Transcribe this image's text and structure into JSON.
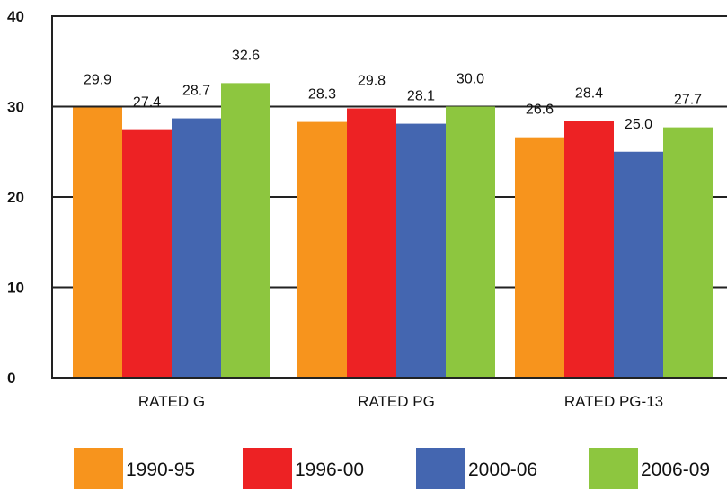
{
  "chart_data": {
    "type": "bar",
    "title": "",
    "xlabel": "",
    "ylabel": "",
    "ylim": [
      0,
      40
    ],
    "yticks": [
      0,
      10,
      20,
      30,
      40
    ],
    "grid": true,
    "legend_position": "bottom",
    "categories": [
      "RATED G",
      "RATED PG",
      "RATED PG-13"
    ],
    "series": [
      {
        "name": "1990-95",
        "color": "#F7941D",
        "values": [
          29.9,
          28.3,
          26.6
        ],
        "labels": [
          "29.9",
          "28.3",
          "26.6"
        ]
      },
      {
        "name": "1996-00",
        "color": "#ED2224",
        "values": [
          27.4,
          29.8,
          28.4
        ],
        "labels": [
          "27.4",
          "29.8",
          "28.4"
        ]
      },
      {
        "name": "2000-06",
        "color": "#4466B0",
        "values": [
          28.7,
          28.1,
          25.0
        ],
        "labels": [
          "28.7",
          "28.1",
          "25.0"
        ]
      },
      {
        "name": "2006-09",
        "color": "#8DC63F",
        "values": [
          32.6,
          30.0,
          27.7
        ],
        "labels": [
          "32.6",
          "30.0",
          "27.7"
        ]
      }
    ]
  }
}
